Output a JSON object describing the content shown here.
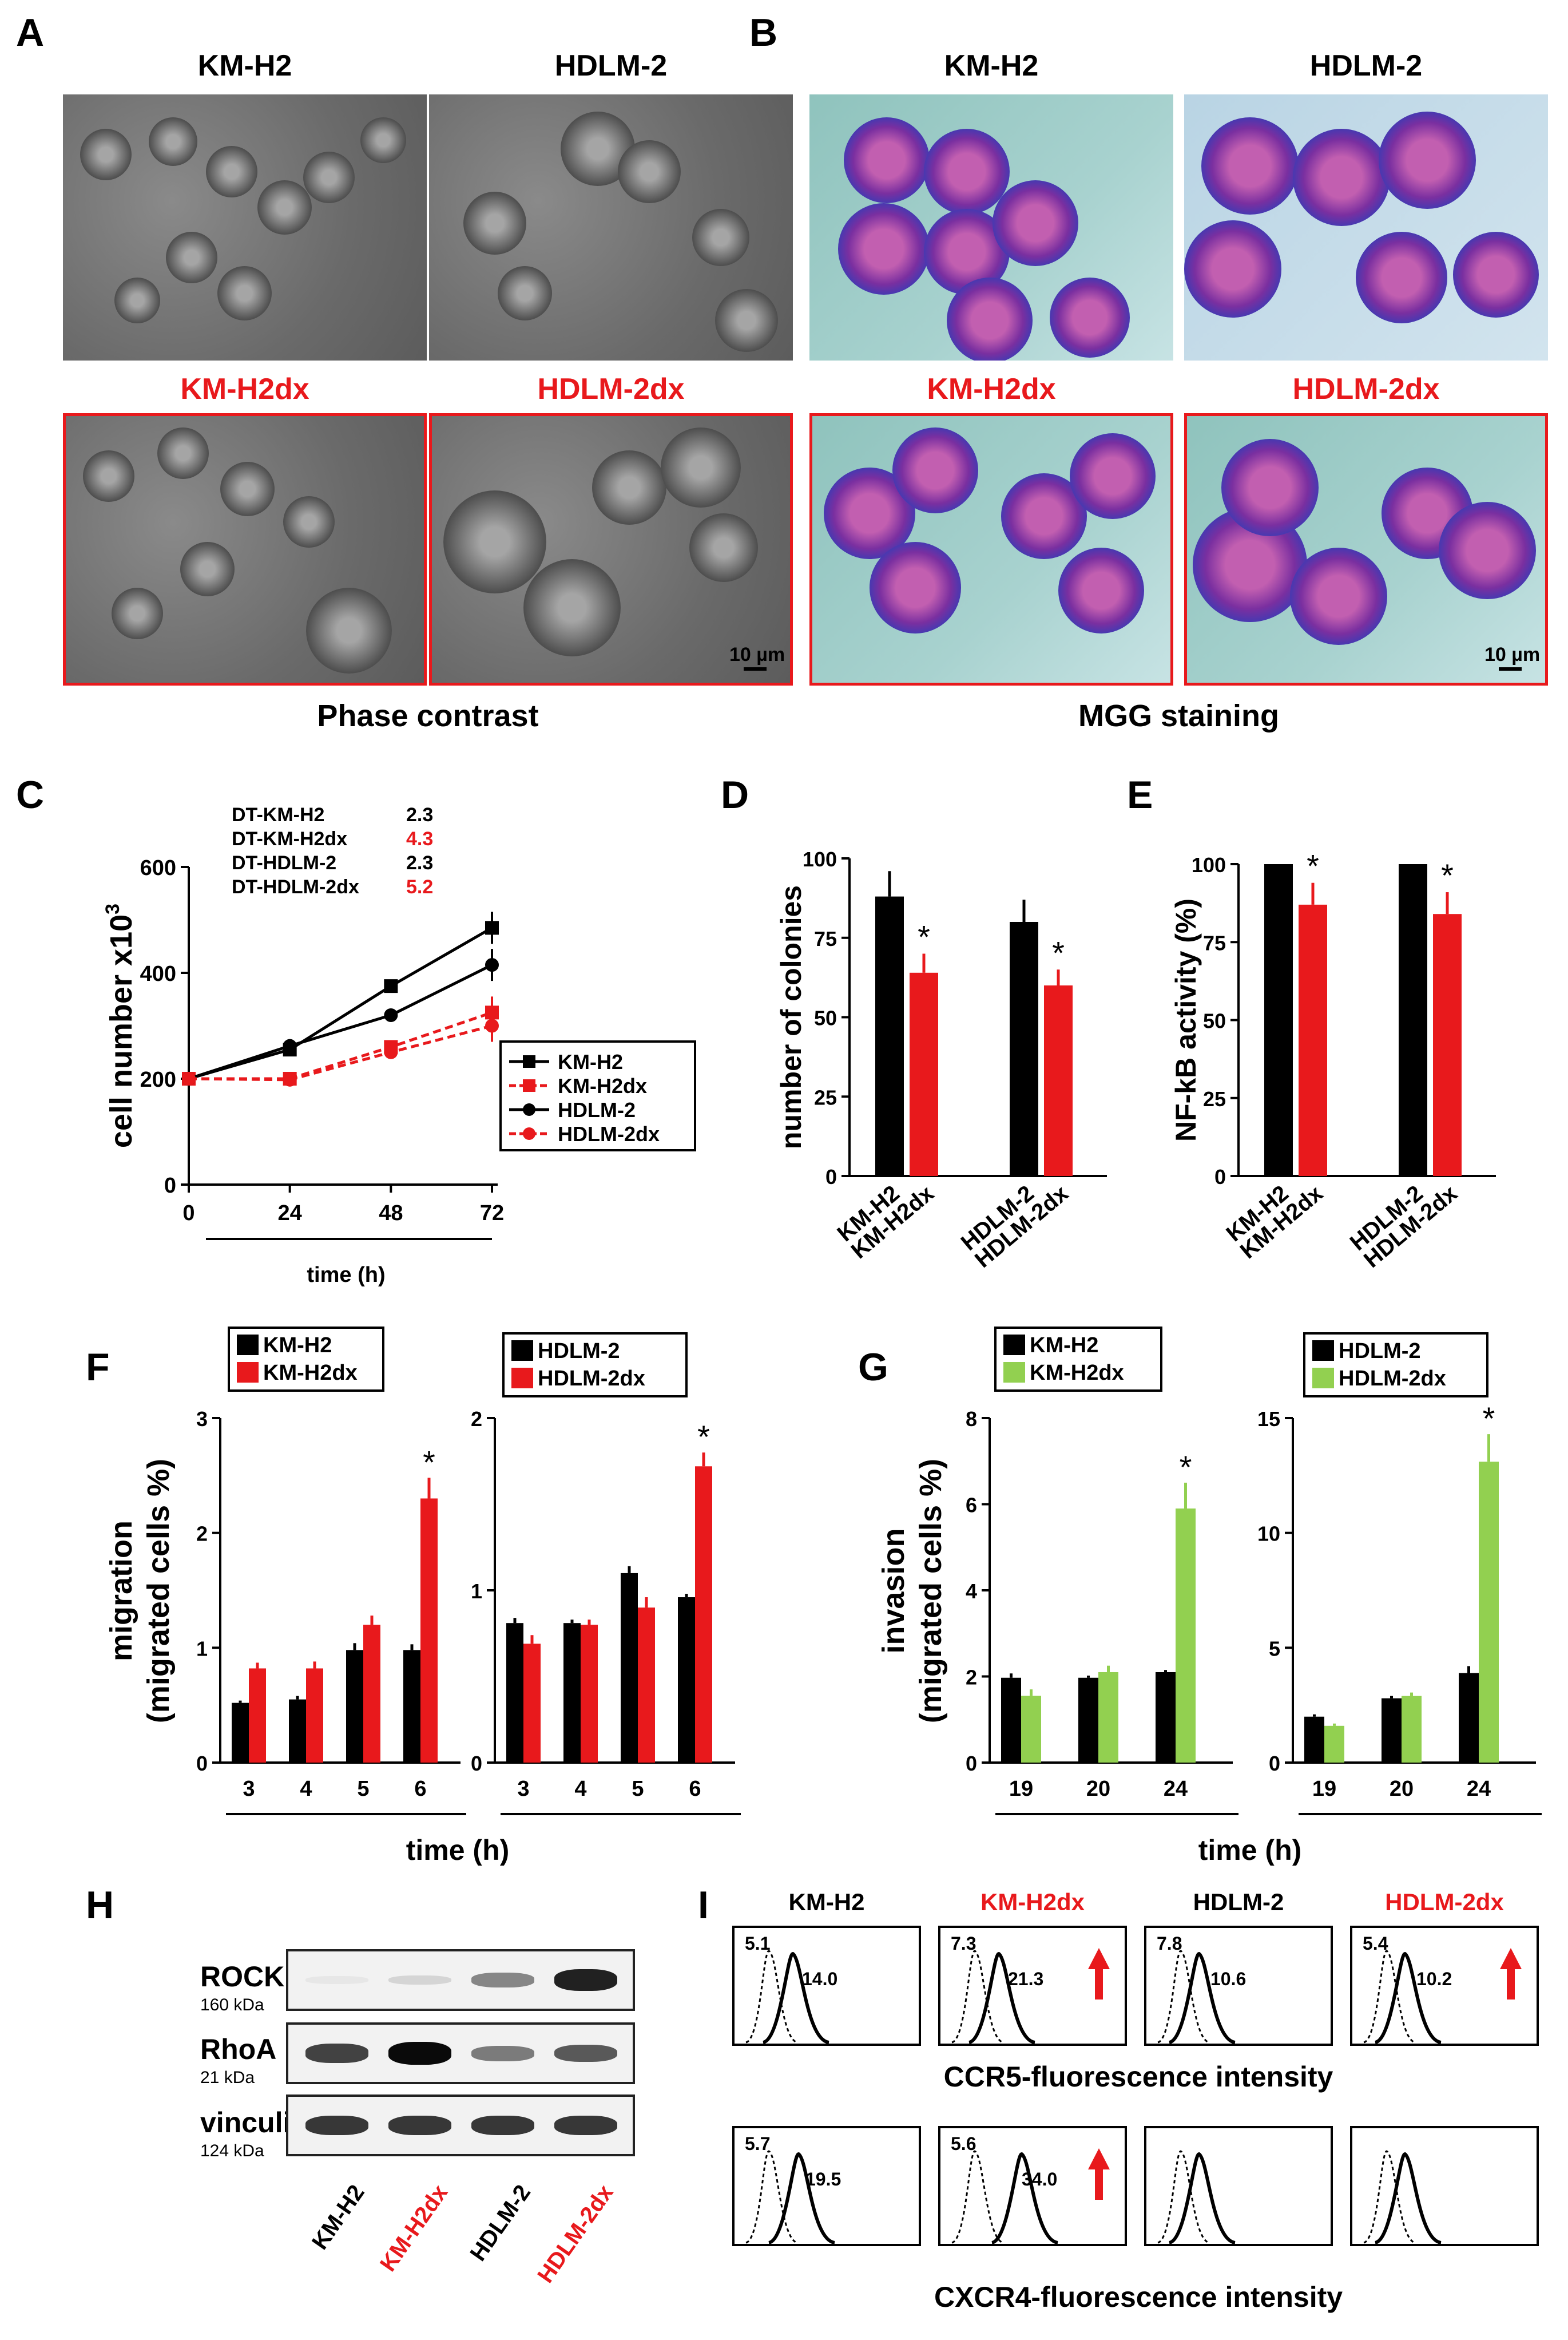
{
  "panels": {
    "A": {
      "letter": "A",
      "headers_top": [
        "KM-H2",
        "HDLM-2"
      ],
      "headers_bottom": [
        "KM-H2dx",
        "HDLM-2dx"
      ],
      "scale": "10 µm",
      "caption": "Phase contrast"
    },
    "B": {
      "letter": "B",
      "headers_top": [
        "KM-H2",
        "HDLM-2"
      ],
      "headers_bottom": [
        "KM-H2dx",
        "HDLM-2dx"
      ],
      "scale": "10 µm",
      "caption": "MGG staining"
    },
    "C": {
      "letter": "C"
    },
    "D": {
      "letter": "D"
    },
    "E": {
      "letter": "E"
    },
    "F": {
      "letter": "F"
    },
    "G": {
      "letter": "G"
    },
    "H": {
      "letter": "H",
      "rows": [
        {
          "name": "ROCK",
          "kda": "160 kDa"
        },
        {
          "name": "RhoA",
          "kda": "21 kDa"
        },
        {
          "name": "vinculin",
          "kda": "124 kDa"
        }
      ],
      "lanes": [
        "KM-H2",
        "KM-H2dx",
        "HDLM-2",
        "HDLM-2dx"
      ],
      "rock_levels": [
        0.02,
        0.1,
        0.45,
        0.9
      ],
      "rhoa_levels": [
        0.75,
        1.0,
        0.5,
        0.65
      ],
      "vinculin_levels": [
        0.8,
        0.8,
        0.8,
        0.8
      ]
    },
    "I": {
      "letter": "I",
      "headers": [
        "KM-H2",
        "KM-H2dx",
        "HDLM-2",
        "HDLM-2dx"
      ],
      "ccr5": {
        "iso": [
          "5.1",
          "7.3",
          "7.8",
          "5.4"
        ],
        "stain": [
          "14.0",
          "21.3",
          "10.6",
          "10.2"
        ],
        "arrows": [
          false,
          true,
          false,
          true
        ],
        "label": "CCR5-fluorescence intensity"
      },
      "cxcr4": {
        "iso": [
          "5.7",
          "5.6",
          "",
          ""
        ],
        "stain": [
          "19.5",
          "34.0",
          "",
          ""
        ],
        "arrows": [
          false,
          true,
          false,
          false
        ],
        "label": "CXCR4-fluorescence intensity"
      }
    }
  },
  "colors": {
    "black": "#000000",
    "red": "#e8191c",
    "green": "#92d050"
  },
  "chart_data": [
    {
      "id": "C",
      "type": "line",
      "xlabel": "time (h)",
      "ylabel": "cell number x10",
      "ylabel_sup": "3",
      "x": [
        0,
        24,
        48,
        72
      ],
      "ylim": [
        0,
        600
      ],
      "yticks": [
        0,
        200,
        400,
        600
      ],
      "series": [
        {
          "name": "KM-H2",
          "values": [
            200,
            255,
            375,
            485
          ],
          "color": "#000000",
          "dashed": false,
          "marker": "square"
        },
        {
          "name": "KM-H2dx",
          "values": [
            200,
            200,
            260,
            325
          ],
          "color": "#e8191c",
          "dashed": true,
          "marker": "square"
        },
        {
          "name": "HDLM-2",
          "values": [
            200,
            262,
            320,
            415
          ],
          "color": "#000000",
          "dashed": false,
          "marker": "circle"
        },
        {
          "name": "HDLM-2dx",
          "values": [
            200,
            198,
            250,
            300
          ],
          "color": "#e8191c",
          "dashed": true,
          "marker": "circle"
        }
      ],
      "dt_labels": [
        "DT-KM-H2",
        "DT-KM-H2dx",
        "DT-HDLM-2",
        "DT-HDLM-2dx"
      ],
      "dt_values": [
        "2.3",
        "4.3",
        "2.3",
        "5.2"
      ]
    },
    {
      "id": "D",
      "type": "bar",
      "ylabel": "number of colonies",
      "ylim": [
        0,
        100
      ],
      "yticks": [
        0,
        25,
        50,
        75,
        100
      ],
      "categories": [
        "KM-H2",
        "KM-H2dx",
        "HDLM-2",
        "HDLM-2dx"
      ],
      "values": [
        88,
        64,
        80,
        60
      ],
      "errors": [
        8,
        6,
        7,
        5
      ],
      "star": [
        false,
        true,
        false,
        true
      ]
    },
    {
      "id": "E",
      "type": "bar",
      "ylabel": "NF-kB activity (%)",
      "ylim": [
        0,
        100
      ],
      "yticks": [
        0,
        25,
        50,
        75,
        100
      ],
      "categories": [
        "KM-H2",
        "KM-H2dx",
        "HDLM-2",
        "HDLM-2dx"
      ],
      "values": [
        100,
        87,
        100,
        84
      ],
      "errors": [
        0,
        7,
        0,
        7
      ],
      "star": [
        false,
        true,
        false,
        true
      ]
    },
    {
      "id": "F1",
      "type": "bar",
      "ylabel": "migration",
      "ylabel2": "(migrated cells %)",
      "xlabel": "time (h)",
      "ylim": [
        0,
        3
      ],
      "yticks": [
        0,
        1,
        2,
        3
      ],
      "categories": [
        "3",
        "4",
        "5",
        "6"
      ],
      "series": [
        {
          "name": "KM-H2",
          "values": [
            0.52,
            0.55,
            0.98,
            0.98
          ],
          "errors": [
            0.02,
            0.03,
            0.06,
            0.05
          ],
          "color": "#000000"
        },
        {
          "name": "KM-H2dx",
          "values": [
            0.82,
            0.82,
            1.2,
            2.3
          ],
          "errors": [
            0.05,
            0.06,
            0.08,
            0.18
          ],
          "color": "#e8191c"
        }
      ],
      "star_index": 3
    },
    {
      "id": "F2",
      "type": "bar",
      "ylim": [
        0,
        2
      ],
      "yticks": [
        0,
        1,
        2
      ],
      "categories": [
        "3",
        "4",
        "5",
        "6"
      ],
      "series": [
        {
          "name": "HDLM-2",
          "values": [
            0.81,
            0.81,
            1.1,
            0.96
          ],
          "errors": [
            0.03,
            0.02,
            0.04,
            0.02
          ],
          "color": "#000000"
        },
        {
          "name": "HDLM-2dx",
          "values": [
            0.69,
            0.8,
            0.9,
            1.72
          ],
          "errors": [
            0.05,
            0.03,
            0.06,
            0.08
          ],
          "color": "#e8191c"
        }
      ],
      "star_index": 3
    },
    {
      "id": "G1",
      "type": "bar",
      "ylabel": "invasion",
      "ylabel2": "(migrated cells %)",
      "xlabel": "time (h)",
      "ylim": [
        0,
        8
      ],
      "yticks": [
        0,
        2,
        4,
        6,
        8
      ],
      "categories": [
        "19",
        "20",
        "24"
      ],
      "series": [
        {
          "name": "KM-H2",
          "values": [
            1.97,
            1.97,
            2.1
          ],
          "errors": [
            0.1,
            0.05,
            0.05
          ],
          "color": "#000000"
        },
        {
          "name": "KM-H2dx",
          "values": [
            1.55,
            2.1,
            5.9
          ],
          "errors": [
            0.15,
            0.15,
            0.6
          ],
          "color": "#92d050"
        }
      ],
      "star_index": 2
    },
    {
      "id": "G2",
      "type": "bar",
      "ylim": [
        0,
        15
      ],
      "yticks": [
        0,
        5,
        10,
        15
      ],
      "categories": [
        "19",
        "20",
        "24"
      ],
      "series": [
        {
          "name": "HDLM-2",
          "values": [
            2.0,
            2.8,
            3.9
          ],
          "errors": [
            0.1,
            0.1,
            0.3
          ],
          "color": "#000000"
        },
        {
          "name": "HDLM-2dx",
          "values": [
            1.6,
            2.9,
            13.1
          ],
          "errors": [
            0.1,
            0.15,
            1.2
          ],
          "color": "#92d050"
        }
      ],
      "star_index": 2
    }
  ]
}
